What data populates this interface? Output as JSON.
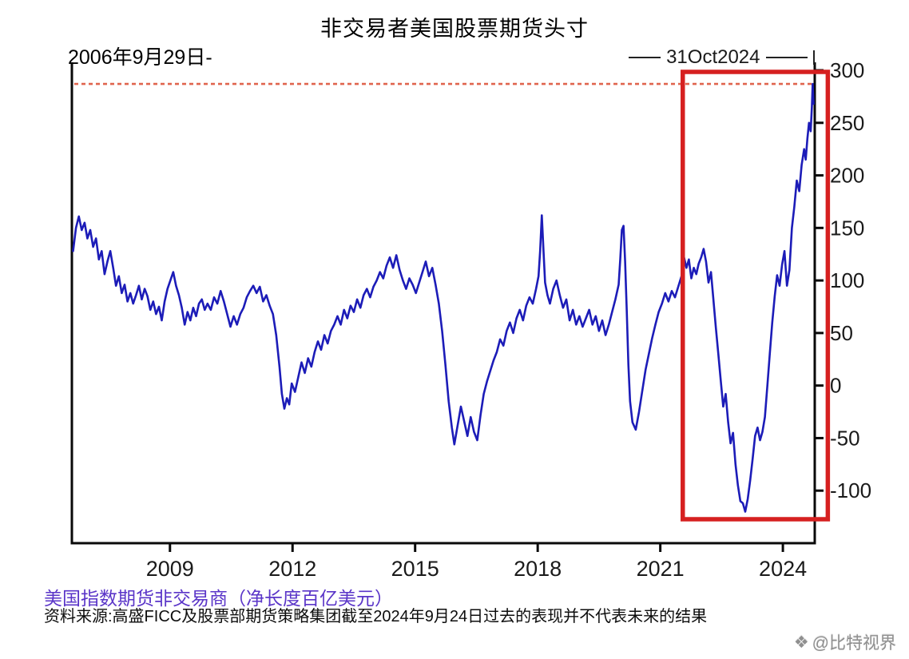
{
  "page": {
    "title": "非交易者美国股票期货头寸",
    "start_date_label": "2006年9月29日-",
    "end_date_label": "31Oct2024",
    "footer_label": "美国指数期货非交易商（净长度百亿美元）",
    "source_text": "资料来源:高盛FICC及股票部期货策略集团截至2024年9月24日过去的表现并不代表未来的结果",
    "watermark": "@比特视界"
  },
  "chart_data": {
    "type": "line",
    "title": "非交易者美国股票期货头寸",
    "ylabel": "美国指数期货非交易商（净长度百亿美元）",
    "xlim": [
      2006.6,
      2024.78
    ],
    "ylim": [
      -150,
      300
    ],
    "x_ticks": [
      2009,
      2012,
      2015,
      2018,
      2021,
      2024
    ],
    "y_ticks": [
      300,
      250,
      200,
      150,
      100,
      50,
      0,
      -50,
      -100
    ],
    "grid": false,
    "legend": "none",
    "annotations": {
      "start_label": "2006年9月29日-",
      "end_label": "31Oct2024",
      "max_dashed_line_y": 287,
      "highlight_box_x": [
        2021.55,
        2025.1
      ]
    },
    "colors": {
      "line": "#1c1cb8",
      "dashed": "#e0654e",
      "box": "#d62020",
      "footer_label": "#5a35c8"
    },
    "points": [
      [
        2006.63,
        128
      ],
      [
        2006.7,
        150
      ],
      [
        2006.77,
        161
      ],
      [
        2006.84,
        148
      ],
      [
        2006.91,
        155
      ],
      [
        2006.98,
        140
      ],
      [
        2007.05,
        148
      ],
      [
        2007.12,
        132
      ],
      [
        2007.19,
        140
      ],
      [
        2007.26,
        120
      ],
      [
        2007.33,
        128
      ],
      [
        2007.4,
        106
      ],
      [
        2007.47,
        118
      ],
      [
        2007.54,
        128
      ],
      [
        2007.61,
        112
      ],
      [
        2007.68,
        95
      ],
      [
        2007.75,
        104
      ],
      [
        2007.82,
        88
      ],
      [
        2007.89,
        96
      ],
      [
        2007.96,
        80
      ],
      [
        2008.03,
        88
      ],
      [
        2008.1,
        78
      ],
      [
        2008.17,
        86
      ],
      [
        2008.24,
        95
      ],
      [
        2008.31,
        82
      ],
      [
        2008.38,
        92
      ],
      [
        2008.45,
        85
      ],
      [
        2008.52,
        72
      ],
      [
        2008.59,
        80
      ],
      [
        2008.66,
        68
      ],
      [
        2008.73,
        75
      ],
      [
        2008.8,
        62
      ],
      [
        2008.87,
        80
      ],
      [
        2008.94,
        92
      ],
      [
        2009.01,
        100
      ],
      [
        2009.08,
        108
      ],
      [
        2009.15,
        95
      ],
      [
        2009.22,
        86
      ],
      [
        2009.29,
        74
      ],
      [
        2009.36,
        58
      ],
      [
        2009.43,
        70
      ],
      [
        2009.5,
        62
      ],
      [
        2009.57,
        74
      ],
      [
        2009.64,
        66
      ],
      [
        2009.71,
        78
      ],
      [
        2009.78,
        82
      ],
      [
        2009.85,
        72
      ],
      [
        2009.92,
        78
      ],
      [
        2010.0,
        72
      ],
      [
        2010.08,
        84
      ],
      [
        2010.16,
        78
      ],
      [
        2010.24,
        90
      ],
      [
        2010.32,
        80
      ],
      [
        2010.4,
        68
      ],
      [
        2010.48,
        56
      ],
      [
        2010.56,
        66
      ],
      [
        2010.64,
        58
      ],
      [
        2010.72,
        68
      ],
      [
        2010.8,
        74
      ],
      [
        2010.88,
        84
      ],
      [
        2010.96,
        90
      ],
      [
        2011.04,
        95
      ],
      [
        2011.12,
        88
      ],
      [
        2011.2,
        94
      ],
      [
        2011.28,
        80
      ],
      [
        2011.36,
        86
      ],
      [
        2011.44,
        76
      ],
      [
        2011.52,
        68
      ],
      [
        2011.6,
        48
      ],
      [
        2011.68,
        18
      ],
      [
        2011.74,
        -8
      ],
      [
        2011.8,
        -22
      ],
      [
        2011.86,
        -12
      ],
      [
        2011.92,
        -18
      ],
      [
        2011.98,
        2
      ],
      [
        2012.06,
        -6
      ],
      [
        2012.14,
        8
      ],
      [
        2012.22,
        22
      ],
      [
        2012.3,
        12
      ],
      [
        2012.38,
        26
      ],
      [
        2012.46,
        18
      ],
      [
        2012.54,
        32
      ],
      [
        2012.62,
        42
      ],
      [
        2012.7,
        34
      ],
      [
        2012.78,
        48
      ],
      [
        2012.86,
        40
      ],
      [
        2012.94,
        52
      ],
      [
        2013.02,
        58
      ],
      [
        2013.1,
        66
      ],
      [
        2013.18,
        58
      ],
      [
        2013.26,
        72
      ],
      [
        2013.34,
        64
      ],
      [
        2013.42,
        76
      ],
      [
        2013.5,
        70
      ],
      [
        2013.58,
        82
      ],
      [
        2013.66,
        74
      ],
      [
        2013.74,
        86
      ],
      [
        2013.82,
        92
      ],
      [
        2013.9,
        84
      ],
      [
        2013.98,
        94
      ],
      [
        2014.06,
        100
      ],
      [
        2014.14,
        108
      ],
      [
        2014.22,
        102
      ],
      [
        2014.3,
        114
      ],
      [
        2014.38,
        122
      ],
      [
        2014.46,
        112
      ],
      [
        2014.54,
        124
      ],
      [
        2014.62,
        110
      ],
      [
        2014.7,
        100
      ],
      [
        2014.78,
        92
      ],
      [
        2014.86,
        102
      ],
      [
        2014.94,
        96
      ],
      [
        2015.02,
        88
      ],
      [
        2015.1,
        98
      ],
      [
        2015.18,
        108
      ],
      [
        2015.26,
        118
      ],
      [
        2015.34,
        104
      ],
      [
        2015.42,
        112
      ],
      [
        2015.5,
        96
      ],
      [
        2015.58,
        78
      ],
      [
        2015.66,
        52
      ],
      [
        2015.74,
        20
      ],
      [
        2015.82,
        -15
      ],
      [
        2015.9,
        -40
      ],
      [
        2015.96,
        -56
      ],
      [
        2016.04,
        -38
      ],
      [
        2016.12,
        -20
      ],
      [
        2016.2,
        -34
      ],
      [
        2016.28,
        -48
      ],
      [
        2016.36,
        -30
      ],
      [
        2016.44,
        -44
      ],
      [
        2016.52,
        -52
      ],
      [
        2016.6,
        -28
      ],
      [
        2016.68,
        -8
      ],
      [
        2016.76,
        4
      ],
      [
        2016.84,
        14
      ],
      [
        2016.92,
        24
      ],
      [
        2017.0,
        32
      ],
      [
        2017.08,
        44
      ],
      [
        2017.16,
        38
      ],
      [
        2017.24,
        52
      ],
      [
        2017.32,
        60
      ],
      [
        2017.4,
        50
      ],
      [
        2017.48,
        64
      ],
      [
        2017.56,
        72
      ],
      [
        2017.64,
        62
      ],
      [
        2017.72,
        76
      ],
      [
        2017.8,
        84
      ],
      [
        2017.88,
        78
      ],
      [
        2017.96,
        92
      ],
      [
        2018.02,
        104
      ],
      [
        2018.06,
        128
      ],
      [
        2018.1,
        162
      ],
      [
        2018.14,
        130
      ],
      [
        2018.18,
        98
      ],
      [
        2018.24,
        86
      ],
      [
        2018.3,
        78
      ],
      [
        2018.38,
        92
      ],
      [
        2018.46,
        100
      ],
      [
        2018.54,
        86
      ],
      [
        2018.62,
        74
      ],
      [
        2018.7,
        82
      ],
      [
        2018.78,
        62
      ],
      [
        2018.86,
        72
      ],
      [
        2018.94,
        58
      ],
      [
        2019.02,
        66
      ],
      [
        2019.1,
        56
      ],
      [
        2019.18,
        64
      ],
      [
        2019.26,
        72
      ],
      [
        2019.34,
        58
      ],
      [
        2019.42,
        66
      ],
      [
        2019.5,
        52
      ],
      [
        2019.58,
        62
      ],
      [
        2019.66,
        48
      ],
      [
        2019.74,
        58
      ],
      [
        2019.82,
        70
      ],
      [
        2019.9,
        82
      ],
      [
        2019.98,
        96
      ],
      [
        2020.02,
        120
      ],
      [
        2020.06,
        148
      ],
      [
        2020.1,
        152
      ],
      [
        2020.14,
        118
      ],
      [
        2020.18,
        70
      ],
      [
        2020.22,
        20
      ],
      [
        2020.26,
        -15
      ],
      [
        2020.32,
        -35
      ],
      [
        2020.4,
        -42
      ],
      [
        2020.48,
        -25
      ],
      [
        2020.56,
        -5
      ],
      [
        2020.64,
        15
      ],
      [
        2020.72,
        30
      ],
      [
        2020.8,
        45
      ],
      [
        2020.88,
        58
      ],
      [
        2020.96,
        70
      ],
      [
        2021.04,
        78
      ],
      [
        2021.12,
        88
      ],
      [
        2021.2,
        80
      ],
      [
        2021.28,
        90
      ],
      [
        2021.36,
        84
      ],
      [
        2021.44,
        94
      ],
      [
        2021.52,
        104
      ],
      [
        2021.58,
        122
      ],
      [
        2021.64,
        112
      ],
      [
        2021.7,
        120
      ],
      [
        2021.76,
        102
      ],
      [
        2021.82,
        112
      ],
      [
        2021.88,
        106
      ],
      [
        2021.94,
        116
      ],
      [
        2022.0,
        122
      ],
      [
        2022.06,
        130
      ],
      [
        2022.12,
        118
      ],
      [
        2022.18,
        98
      ],
      [
        2022.24,
        108
      ],
      [
        2022.3,
        82
      ],
      [
        2022.36,
        55
      ],
      [
        2022.42,
        30
      ],
      [
        2022.48,
        5
      ],
      [
        2022.54,
        -20
      ],
      [
        2022.6,
        -8
      ],
      [
        2022.66,
        -35
      ],
      [
        2022.72,
        -55
      ],
      [
        2022.78,
        -45
      ],
      [
        2022.84,
        -75
      ],
      [
        2022.9,
        -95
      ],
      [
        2022.96,
        -110
      ],
      [
        2023.02,
        -112
      ],
      [
        2023.08,
        -120
      ],
      [
        2023.14,
        -108
      ],
      [
        2023.2,
        -90
      ],
      [
        2023.26,
        -70
      ],
      [
        2023.32,
        -48
      ],
      [
        2023.38,
        -40
      ],
      [
        2023.44,
        -52
      ],
      [
        2023.5,
        -44
      ],
      [
        2023.56,
        -30
      ],
      [
        2023.62,
        0
      ],
      [
        2023.68,
        30
      ],
      [
        2023.74,
        60
      ],
      [
        2023.8,
        85
      ],
      [
        2023.86,
        105
      ],
      [
        2023.92,
        95
      ],
      [
        2023.98,
        115
      ],
      [
        2024.04,
        128
      ],
      [
        2024.1,
        95
      ],
      [
        2024.16,
        110
      ],
      [
        2024.22,
        150
      ],
      [
        2024.28,
        170
      ],
      [
        2024.34,
        195
      ],
      [
        2024.4,
        185
      ],
      [
        2024.46,
        210
      ],
      [
        2024.52,
        225
      ],
      [
        2024.56,
        215
      ],
      [
        2024.6,
        235
      ],
      [
        2024.64,
        250
      ],
      [
        2024.68,
        242
      ],
      [
        2024.71,
        265
      ],
      [
        2024.73,
        287
      ],
      [
        2024.75,
        268
      ]
    ]
  }
}
